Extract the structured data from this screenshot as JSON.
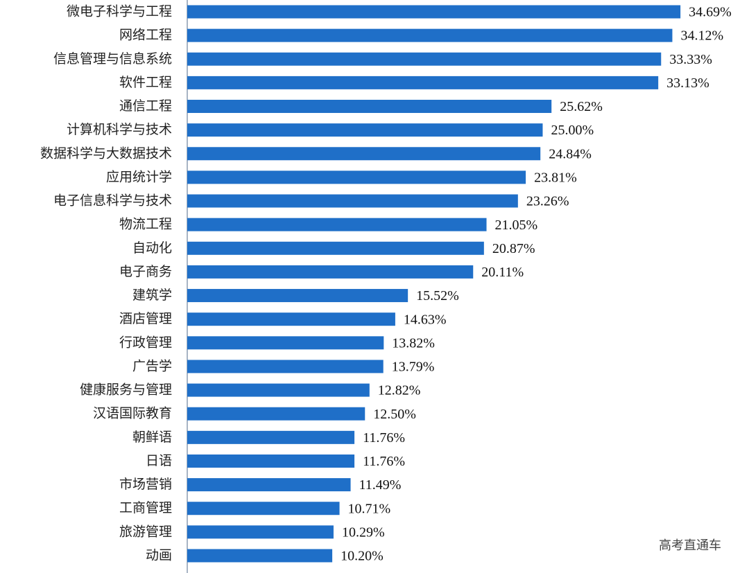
{
  "chart_data": {
    "type": "barh",
    "categories": [
      "微电子科学与工程",
      "网络工程",
      "信息管理与信息系统",
      "软件工程",
      "通信工程",
      "计算机科学与技术",
      "数据科学与大数据技术",
      "应用统计学",
      "电子信息科学与技术",
      "物流工程",
      "自动化",
      "电子商务",
      "建筑学",
      "酒店管理",
      "行政管理",
      "广告学",
      "健康服务与管理",
      "汉语国际教育",
      "朝鲜语",
      "日语",
      "市场营销",
      "工商管理",
      "旅游管理",
      "动画"
    ],
    "values": [
      34.69,
      34.12,
      33.33,
      33.13,
      25.62,
      25.0,
      24.84,
      23.81,
      23.26,
      21.05,
      20.87,
      20.11,
      15.52,
      14.63,
      13.82,
      13.79,
      12.82,
      12.5,
      11.76,
      11.76,
      11.49,
      10.71,
      10.29,
      10.2
    ],
    "value_labels": [
      "34.69%",
      "34.12%",
      "33.33%",
      "33.13%",
      "25.62%",
      "25.00%",
      "24.84%",
      "23.81%",
      "23.26%",
      "21.05%",
      "20.87%",
      "20.11%",
      "15.52%",
      "14.63%",
      "13.82%",
      "13.79%",
      "12.82%",
      "12.50%",
      "11.76%",
      "11.76%",
      "11.49%",
      "10.71%",
      "10.29%",
      "10.20%"
    ],
    "color": "#1f6fc8",
    "watermark": "高考直通车"
  }
}
